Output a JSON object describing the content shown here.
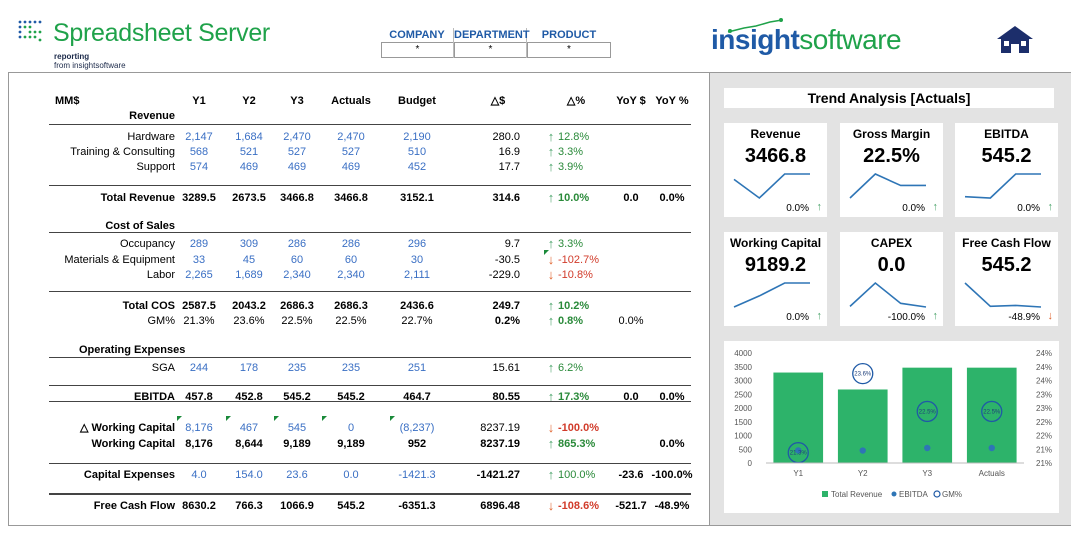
{
  "header": {
    "app_title": "Spreadsheet Server",
    "sub1": "reporting",
    "sub2": "from insightsoftware",
    "filters": [
      {
        "label": "COMPANY",
        "value": "*"
      },
      {
        "label": "DEPARTMENT",
        "value": "*"
      },
      {
        "label": "PRODUCT",
        "value": "*"
      }
    ],
    "brand_part1": "insight",
    "brand_part2": "software",
    "home_icon": "home-icon"
  },
  "table": {
    "headers": {
      "label": "MM$",
      "y1": "Y1",
      "y2": "Y2",
      "y3": "Y3",
      "actuals": "Actuals",
      "budget": "Budget",
      "delta_d": "△$",
      "delta_p": "△%",
      "yoy_d": "YoY $",
      "yoy_p": "YoY %"
    },
    "sections": {
      "revenue": "Revenue",
      "cos": "Cost of Sales",
      "opex": "Operating Expenses"
    },
    "rows": {
      "hardware": {
        "label": "Hardware",
        "y1": "2,147",
        "y2": "1,684",
        "y3": "2,470",
        "act": "2,470",
        "bud": "2,190",
        "dd": "280.0",
        "pct": "12.8%",
        "dir": "up"
      },
      "training": {
        "label": "Training & Consulting",
        "y1": "568",
        "y2": "521",
        "y3": "527",
        "act": "527",
        "bud": "510",
        "dd": "16.9",
        "pct": "3.3%",
        "dir": "up"
      },
      "support": {
        "label": "Support",
        "y1": "574",
        "y2": "469",
        "y3": "469",
        "act": "469",
        "bud": "452",
        "dd": "17.7",
        "pct": "3.9%",
        "dir": "up"
      },
      "total_revenue": {
        "label": "Total Revenue",
        "y1": "3289.5",
        "y2": "2673.5",
        "y3": "3466.8",
        "act": "3466.8",
        "bud": "3152.1",
        "dd": "314.6",
        "pct": "10.0%",
        "dir": "up",
        "yoyd": "0.0",
        "yoyp": "0.0%"
      },
      "occupancy": {
        "label": "Occupancy",
        "y1": "289",
        "y2": "309",
        "y3": "286",
        "act": "286",
        "bud": "296",
        "dd": "9.7",
        "pct": "3.3%",
        "dir": "up"
      },
      "materials": {
        "label": "Materials & Equipment",
        "y1": "33",
        "y2": "45",
        "y3": "60",
        "act": "60",
        "bud": "30",
        "dd": "-30.5",
        "pct": "-102.7%",
        "dir": "down"
      },
      "labor": {
        "label": "Labor",
        "y1": "2,265",
        "y2": "1,689",
        "y3": "2,340",
        "act": "2,340",
        "bud": "2,111",
        "dd": "-229.0",
        "pct": "-10.8%",
        "dir": "down"
      },
      "total_cos": {
        "label": "Total COS",
        "y1": "2587.5",
        "y2": "2043.2",
        "y3": "2686.3",
        "act": "2686.3",
        "bud": "2436.6",
        "dd": "249.7",
        "pct": "10.2%",
        "dir": "up"
      },
      "gm": {
        "label": "GM%",
        "y1": "21.3%",
        "y2": "23.6%",
        "y3": "22.5%",
        "act": "22.5%",
        "bud": "22.7%",
        "dd": "0.2%",
        "pct": "0.8%",
        "dir": "up",
        "yoyd": "0.0%"
      },
      "sga": {
        "label": "SGA",
        "y1": "244",
        "y2": "178",
        "y3": "235",
        "act": "235",
        "bud": "251",
        "dd": "15.61",
        "pct": "6.2%",
        "dir": "up"
      },
      "ebitda": {
        "label": "EBITDA",
        "y1": "457.8",
        "y2": "452.8",
        "y3": "545.2",
        "act": "545.2",
        "bud": "464.7",
        "dd": "80.55",
        "pct": "17.3%",
        "dir": "up",
        "yoyd": "0.0",
        "yoyp": "0.0%"
      },
      "delta_wc": {
        "label": "△ Working Capital",
        "y1": "8,176",
        "y2": "467",
        "y3": "545",
        "act": "0",
        "bud": "(8,237)",
        "dd": "8237.19",
        "pct": "-100.0%",
        "dir": "down"
      },
      "wc": {
        "label": "Working Capital",
        "y1": "8,176",
        "y2": "8,644",
        "y3": "9,189",
        "act": "9,189",
        "bud": "952",
        "dd": "8237.19",
        "pct": "865.3%",
        "dir": "up",
        "yoyp": "0.0%"
      },
      "capex": {
        "label": "Capital Expenses",
        "y1": "4.0",
        "y2": "154.0",
        "y3": "23.6",
        "act": "0.0",
        "bud": "-1421.3",
        "dd": "-1421.27",
        "pct": "100.0%",
        "dir": "up",
        "yoyd": "-23.6",
        "yoyp": "-100.0%"
      },
      "fcf": {
        "label": "Free Cash Flow",
        "y1": "8630.2",
        "y2": "766.3",
        "y3": "1066.9",
        "act": "545.2",
        "bud": "-6351.3",
        "dd": "6896.48",
        "pct": "-108.6%",
        "dir": "down",
        "yoyd": "-521.7",
        "yoyp": "-48.9%"
      }
    }
  },
  "trend": {
    "title": "Trend Analysis [Actuals]",
    "kpis": [
      {
        "name": "Revenue",
        "value": "3466.8",
        "pct": "0.0%",
        "dir": "up",
        "spark": [
          3289.5,
          2673.5,
          3466.8,
          3466.8
        ]
      },
      {
        "name": "Gross Margin",
        "value": "22.5%",
        "pct": "0.0%",
        "dir": "up",
        "spark": [
          21.3,
          23.6,
          22.5,
          22.5
        ]
      },
      {
        "name": "EBITDA",
        "value": "545.2",
        "pct": "0.0%",
        "dir": "up",
        "spark": [
          457.8,
          452.8,
          545.2,
          545.2
        ]
      },
      {
        "name": "Working Capital",
        "value": "9189.2",
        "pct": "0.0%",
        "dir": "up",
        "spark": [
          8176,
          8644,
          9189,
          9189
        ]
      },
      {
        "name": "CAPEX",
        "value": "0.0",
        "pct": "-100.0%",
        "dir": "up",
        "spark": [
          4.0,
          154.0,
          23.6,
          0.0
        ]
      },
      {
        "name": "Free Cash Flow",
        "value": "545.2",
        "pct": "-48.9%",
        "dir": "down",
        "spark": [
          8630.2,
          766.3,
          1066.9,
          545.2
        ]
      }
    ],
    "colors": {
      "up": "#4aa36a",
      "down": "#e0632e",
      "line": "#2e75b6",
      "bar": "#2db36a"
    }
  },
  "chart_data": {
    "type": "bar",
    "categories": [
      "Y1",
      "Y2",
      "Y3",
      "Actuals"
    ],
    "series": [
      {
        "name": "Total Revenue",
        "type": "bar",
        "axis": "left",
        "values": [
          3289.5,
          2673.5,
          3466.8,
          3466.8
        ]
      },
      {
        "name": "EBITDA",
        "type": "scatter",
        "axis": "left",
        "values": [
          457.8,
          452.8,
          545.2,
          545.2
        ]
      },
      {
        "name": "GM%",
        "type": "scatter",
        "axis": "right",
        "values": [
          21.3,
          23.6,
          22.5,
          22.5
        ],
        "labels": [
          "21.3%",
          "23.6%",
          "22.5%",
          "22.5%"
        ]
      }
    ],
    "yticks_left": [
      "0",
      "500",
      "1000",
      "1500",
      "2000",
      "2500",
      "3000",
      "3500",
      "4000"
    ],
    "yticks_right": [
      "21%",
      "21%",
      "22%",
      "22%",
      "23%",
      "23%",
      "24%",
      "24%",
      "24%"
    ],
    "ylim_left": [
      0,
      4000
    ],
    "ylim_right": [
      21,
      24.2
    ],
    "legend_position": "bottom"
  }
}
